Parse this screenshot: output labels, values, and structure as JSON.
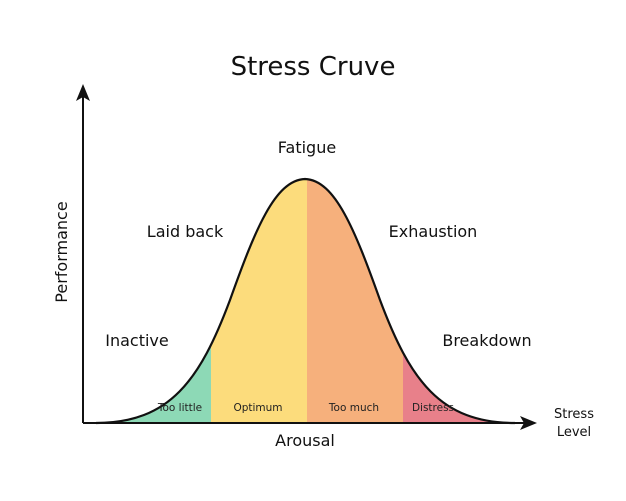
{
  "title": "Stress Cruve",
  "y_axis_label": "Performance",
  "x_axis_label": "Arousal",
  "x_axis_end_label": [
    "Stress",
    "Level"
  ],
  "zones": {
    "inactive": "Inactive",
    "laid_back": "Laid back",
    "fatigue": "Fatigue",
    "exhaustion": "Exhaustion",
    "breakdown": "Breakdown"
  },
  "bands": [
    {
      "key": "too_little",
      "label": "Too little",
      "color": "#8dd9b6"
    },
    {
      "key": "optimum",
      "label": "Optimum",
      "color": "#fcdc7c"
    },
    {
      "key": "too_much",
      "label": "Too much",
      "color": "#f6b07c"
    },
    {
      "key": "distress",
      "label": "Distress",
      "color": "#e8808a"
    }
  ],
  "colors": {
    "curve": "#111111",
    "axis": "#111111"
  }
}
